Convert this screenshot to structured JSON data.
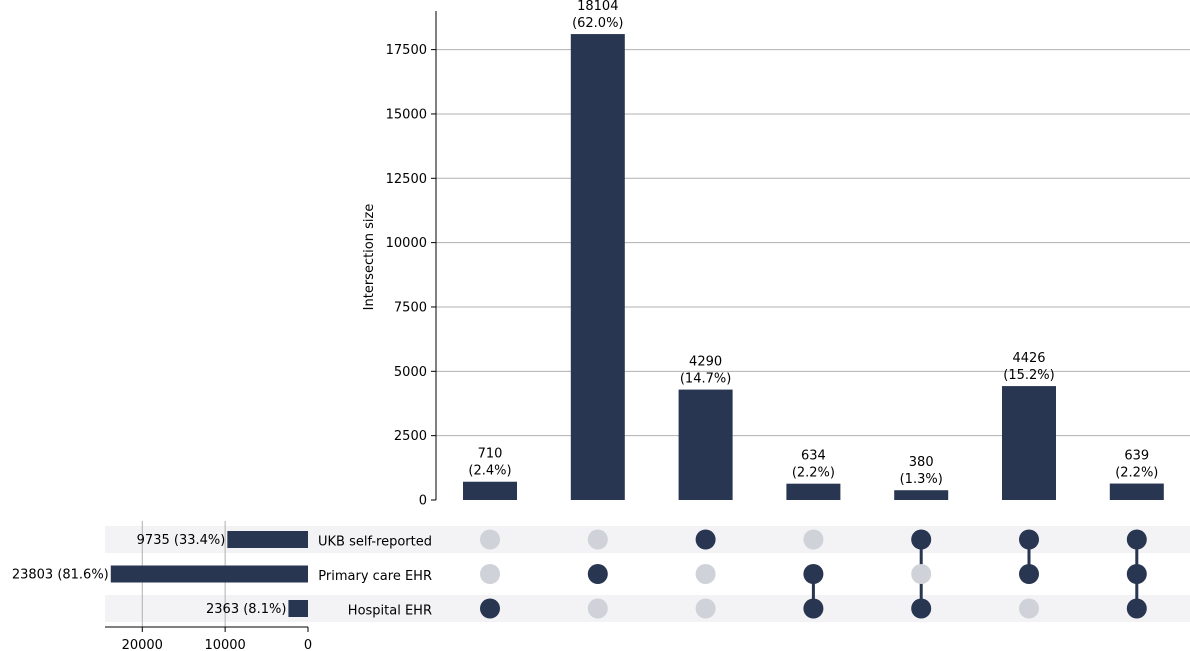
{
  "chart_data": {
    "type": "upset",
    "ylabel": "Intersection size",
    "yticks": [
      0,
      2500,
      5000,
      7500,
      10000,
      12500,
      15000,
      17500
    ],
    "ylim": [
      0,
      19000
    ],
    "sets": [
      {
        "name": "UKB self-reported",
        "size": 9735,
        "label": "9735 (33.4%)"
      },
      {
        "name": "Primary care EHR",
        "size": 23803,
        "label": "23803 (81.6%)"
      },
      {
        "name": "Hospital EHR",
        "size": 2363,
        "label": "2363 (8.1%)"
      }
    ],
    "set_size_ticks": [
      20000,
      10000,
      0
    ],
    "set_size_xlim": [
      0,
      24500
    ],
    "intersections": [
      {
        "members": [
          0,
          0,
          1
        ],
        "value": 710,
        "label_value": "710",
        "label_pct": "(2.4%)"
      },
      {
        "members": [
          0,
          1,
          0
        ],
        "value": 18104,
        "label_value": "18104",
        "label_pct": "(62.0%)"
      },
      {
        "members": [
          1,
          0,
          0
        ],
        "value": 4290,
        "label_value": "4290",
        "label_pct": "(14.7%)"
      },
      {
        "members": [
          0,
          1,
          1
        ],
        "value": 634,
        "label_value": "634",
        "label_pct": "(2.2%)"
      },
      {
        "members": [
          1,
          0,
          1
        ],
        "value": 380,
        "label_value": "380",
        "label_pct": "(1.3%)"
      },
      {
        "members": [
          1,
          1,
          0
        ],
        "value": 4426,
        "label_value": "4426",
        "label_pct": "(15.2%)"
      },
      {
        "members": [
          1,
          1,
          1
        ],
        "value": 639,
        "label_value": "639",
        "label_pct": "(2.2%)"
      }
    ],
    "grid": true,
    "colors": {
      "bar": "#283651",
      "dot_inactive": "#cfd2d8",
      "stripe": "#f3f3f5",
      "grid": "#b0b0b0"
    }
  }
}
